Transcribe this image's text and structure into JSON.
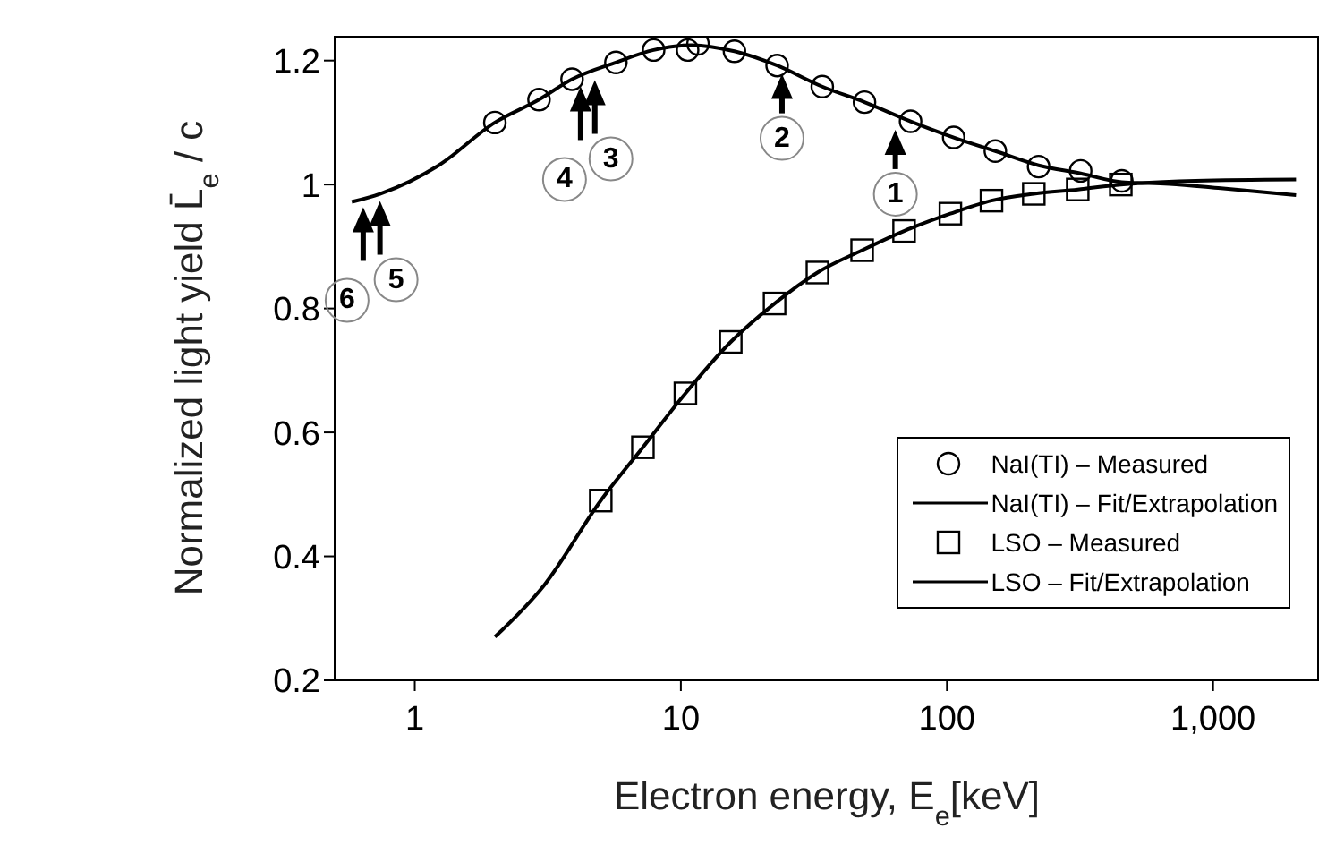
{
  "chart_data": {
    "type": "line",
    "xlabel": "Electron energy, E$_{e}$[keV]",
    "ylabel": "Normalized light yield L̄$_{e}$ / c",
    "log": "x",
    "xlim": [
      0.5,
      2500
    ],
    "xticks": [
      1,
      10,
      100,
      {
        "value": 1000,
        "label": "1,000"
      }
    ],
    "ylim": [
      0.2,
      1.24
    ],
    "yticks": [
      0.2,
      0.4,
      0.6,
      0.8,
      1,
      1.2
    ],
    "grid": false,
    "legend": "bottom right",
    "series": [
      {
        "name": "NaI(TI) – Measured",
        "type": "scatter",
        "marker": "circle",
        "color": "#000000",
        "x": [
          2.0,
          2.93,
          3.9,
          5.7,
          7.9,
          10.6,
          11.6,
          15.9,
          23,
          34,
          49,
          73,
          106,
          152,
          221,
          318,
          454
        ],
        "values": [
          1.1,
          1.137,
          1.17,
          1.197,
          1.217,
          1.217,
          1.227,
          1.215,
          1.192,
          1.158,
          1.133,
          1.102,
          1.076,
          1.054,
          1.029,
          1.022,
          1.006
        ]
      },
      {
        "name": "NaI(TI) – Fit/Extrapolation",
        "type": "line",
        "marker": "none",
        "color": "#000000",
        "x": [
          0.58,
          0.74,
          1.23,
          2.0,
          2.93,
          3.9,
          5.7,
          7.9,
          11,
          15.9,
          23,
          34,
          49,
          73,
          106,
          152,
          221,
          318,
          454,
          685,
          1070,
          2050
        ],
        "values": [
          0.972,
          0.985,
          1.031,
          1.1,
          1.137,
          1.17,
          1.197,
          1.217,
          1.225,
          1.215,
          1.192,
          1.158,
          1.133,
          1.102,
          1.076,
          1.054,
          1.031,
          1.018,
          1.004,
          1.001,
          0.994,
          0.983
        ]
      },
      {
        "name": "LSO – Measured",
        "type": "scatter",
        "marker": "square",
        "color": "#000000",
        "x": [
          5.0,
          7.2,
          10.4,
          15.4,
          22.5,
          32.6,
          48,
          69,
          103,
          147,
          212,
          310,
          450
        ],
        "values": [
          0.49,
          0.576,
          0.663,
          0.746,
          0.808,
          0.858,
          0.894,
          0.925,
          0.953,
          0.974,
          0.985,
          0.992,
          1.0
        ]
      },
      {
        "name": "LSO – Fit/Extrapolation",
        "type": "line",
        "marker": "none",
        "color": "#000000",
        "x": [
          2.0,
          3.07,
          5.0,
          7.2,
          10.4,
          15.4,
          22.5,
          32.6,
          48,
          69,
          103,
          147,
          212,
          310,
          450,
          860,
          2050
        ],
        "values": [
          0.27,
          0.354,
          0.49,
          0.576,
          0.663,
          0.746,
          0.808,
          0.858,
          0.894,
          0.925,
          0.953,
          0.974,
          0.985,
          0.992,
          1.0,
          1.006,
          1.008
        ]
      }
    ],
    "annotations": [
      {
        "text": "1",
        "x": 64,
        "y": 1.1
      },
      {
        "text": "2",
        "x": 24,
        "y": 1.19
      },
      {
        "text": "3",
        "x": 4.75,
        "y": 1.18
      },
      {
        "text": "4",
        "x": 4.2,
        "y": 1.17
      },
      {
        "text": "5",
        "x": 0.74,
        "y": 0.985
      },
      {
        "text": "6",
        "x": 0.64,
        "y": 0.975
      }
    ]
  }
}
